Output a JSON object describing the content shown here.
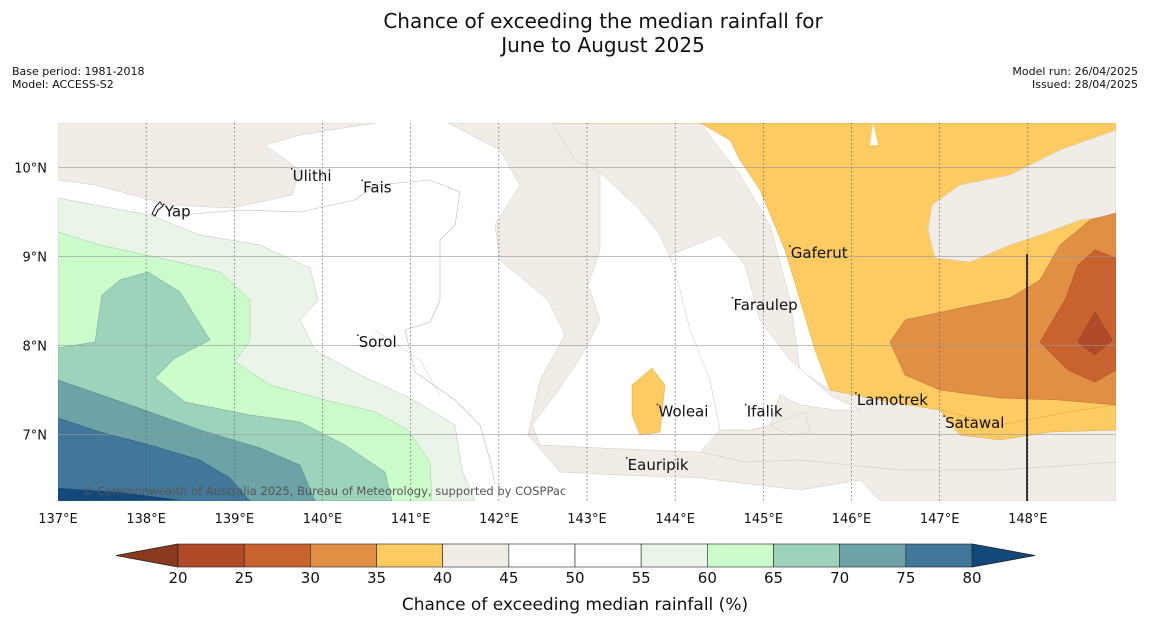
{
  "title": [
    "Chance of exceeding the median rainfall for",
    "June to August 2025"
  ],
  "meta_left": [
    "Base period: 1981-2018",
    "Model: ACCESS-S2"
  ],
  "meta_right": [
    "Model run: 26/04/2025",
    "Issued: 28/04/2025"
  ],
  "copyright": "© Commonwealth of Australia 2025, Bureau of Meteorology, supported by COSPPac",
  "map": {
    "lon_range": [
      137,
      149
    ],
    "lat_range": [
      6.25,
      10.5
    ],
    "lon_ticks": [
      137,
      138,
      139,
      140,
      141,
      142,
      143,
      144,
      145,
      146,
      147,
      148
    ],
    "lon_tick_labels": [
      "137°E",
      "138°E",
      "139°E",
      "140°E",
      "141°E",
      "142°E",
      "143°E",
      "144°E",
      "145°E",
      "146°E",
      "147°E",
      "148°E"
    ],
    "lat_ticks": [
      7,
      8,
      9,
      10
    ],
    "lat_tick_labels": [
      "7°N",
      "8°N",
      "9°N",
      "10°N"
    ],
    "places": [
      {
        "name": "Ulithi",
        "lon": 139.65,
        "lat": 9.85
      },
      {
        "name": "Fais",
        "lon": 140.45,
        "lat": 9.72
      },
      {
        "name": "Yap",
        "lon": 138.2,
        "lat": 9.45
      },
      {
        "name": "Gaferut",
        "lon": 145.3,
        "lat": 8.98
      },
      {
        "name": "Faraulep",
        "lon": 144.65,
        "lat": 8.4
      },
      {
        "name": "Sorol",
        "lon": 140.4,
        "lat": 7.98
      },
      {
        "name": "Lamotrek",
        "lon": 146.05,
        "lat": 7.33
      },
      {
        "name": "Woleai",
        "lon": 143.8,
        "lat": 7.2
      },
      {
        "name": "Ifalik",
        "lon": 144.8,
        "lat": 7.2
      },
      {
        "name": "Satawal",
        "lon": 147.05,
        "lat": 7.07
      },
      {
        "name": "Eauripik",
        "lon": 143.45,
        "lat": 6.6
      }
    ]
  },
  "colorbar": {
    "label": "Chance of exceeding median rainfall (%)",
    "ticks": [
      20,
      25,
      30,
      35,
      40,
      45,
      50,
      55,
      60,
      65,
      70,
      75,
      80
    ],
    "under_color": "#8c3a1e",
    "over_color": "#13497a",
    "bins": [
      {
        "range": [
          20,
          25
        ],
        "color": "#b04a28"
      },
      {
        "range": [
          25,
          30
        ],
        "color": "#c8622f"
      },
      {
        "range": [
          30,
          35
        ],
        "color": "#e08f45"
      },
      {
        "range": [
          35,
          40
        ],
        "color": "#fecb62"
      },
      {
        "range": [
          40,
          45
        ],
        "color": "#f1ece6"
      },
      {
        "range": [
          45,
          50
        ],
        "color": "#ffffff"
      },
      {
        "range": [
          50,
          55
        ],
        "color": "#ffffff"
      },
      {
        "range": [
          55,
          60
        ],
        "color": "#eaf4e9"
      },
      {
        "range": [
          60,
          65
        ],
        "color": "#ccfccc"
      },
      {
        "range": [
          65,
          70
        ],
        "color": "#9dd3bb"
      },
      {
        "range": [
          70,
          75
        ],
        "color": "#6da3a6"
      },
      {
        "range": [
          75,
          80
        ],
        "color": "#417799"
      }
    ]
  }
}
